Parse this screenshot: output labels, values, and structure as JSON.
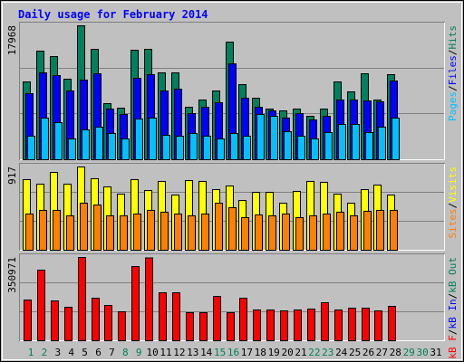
{
  "chart_data": {
    "type": "bar",
    "title": "Daily usage for February 2014",
    "categories": [
      "1",
      "2",
      "3",
      "4",
      "5",
      "6",
      "7",
      "8",
      "9",
      "10",
      "11",
      "12",
      "13",
      "14",
      "15",
      "16",
      "17",
      "18",
      "19",
      "20",
      "21",
      "22",
      "23",
      "24",
      "25",
      "26",
      "27",
      "28",
      "29",
      "30",
      "31"
    ],
    "category_colors": [
      "#00805c",
      "#00805c",
      "#000000",
      "#000000",
      "#000000",
      "#000000",
      "#000000",
      "#00805c",
      "#00805c",
      "#000000",
      "#000000",
      "#000000",
      "#000000",
      "#000000",
      "#00805c",
      "#00805c",
      "#000000",
      "#000000",
      "#000000",
      "#000000",
      "#000000",
      "#00805c",
      "#00805c",
      "#000000",
      "#000000",
      "#000000",
      "#000000",
      "#000000",
      "#00805c",
      "#00805c",
      "#000000"
    ],
    "legend_separator": "/",
    "panels": [
      {
        "ylim": [
          0,
          17968
        ],
        "yticks": [
          17968
        ],
        "series": [
          {
            "name": "Hits",
            "color": "#00805c",
            "values": [
              10440,
              14568,
              13840,
              10805,
              17968,
              14811,
              7527,
              6920,
              14689,
              14811,
              11654,
              11654,
              7041,
              8012,
              9226,
              15782,
              10076,
              8255,
              6798,
              6556,
              6798,
              5827,
              6798,
              10440,
              9105,
              11533,
              8012,
              11412,
              null,
              null,
              null
            ]
          },
          {
            "name": "Files",
            "color": "#0000ff",
            "values": [
              8862,
              11654,
              11290,
              9226,
              10683,
              11533,
              6798,
              6070,
              10926,
              11412,
              9226,
              9469,
              6191,
              7041,
              7648,
              12868,
              8255,
              7041,
              6556,
              5584,
              6191,
              5342,
              5827,
              8012,
              8012,
              7891,
              7770,
              10562,
              null,
              null,
              null
            ]
          },
          {
            "name": "Pages",
            "color": "#00c0ff",
            "values": [
              3156,
              5584,
              4977,
              2792,
              4006,
              4370,
              3521,
              2792,
              5463,
              5584,
              3278,
              3156,
              3521,
              3156,
              2792,
              3521,
              3156,
              6070,
              5827,
              3763,
              3156,
              2792,
              3642,
              4735,
              4735,
              3642,
              4370,
              5584,
              null,
              null,
              null
            ]
          }
        ]
      },
      {
        "ylim": [
          0,
          917
        ],
        "yticks": [
          917
        ],
        "series": [
          {
            "name": "Visits",
            "color": "#ffff00",
            "values": [
              778,
              728,
              857,
              728,
              917,
              788,
              698,
              618,
              778,
              658,
              758,
              608,
              768,
              758,
              668,
              708,
              548,
              638,
              638,
              518,
              648,
              758,
              748,
              618,
              518,
              668,
              718,
              608,
              null,
              null,
              null
            ]
          },
          {
            "name": "Sites",
            "color": "#ff8000",
            "values": [
              399,
              439,
              439,
              379,
              518,
              498,
              379,
              379,
              399,
              439,
              419,
              399,
              379,
              399,
              518,
              469,
              359,
              389,
              379,
              399,
              359,
              379,
              399,
              419,
              379,
              429,
              439,
              439,
              null,
              null,
              null
            ]
          }
        ]
      },
      {
        "ylim": [
          0,
          350971
        ],
        "yticks": [
          350971
        ],
        "series": [
          {
            "name": "kB Out",
            "color": "#00805c"
          },
          {
            "name": "kB In",
            "color": "#0000ff"
          },
          {
            "name": "kB F",
            "color": "#ff0000",
            "values": [
              171675,
              297570,
              167860,
              141155,
              350971,
              179305,
              148785,
              122080,
              312830,
              349000,
              202195,
              202195,
              118265,
              118265,
              186935,
              118265,
              179305,
              129710,
              129710,
              125895,
              129710,
              133525,
              160230,
              129710,
              137340,
              137340,
              125895,
              144970,
              null,
              null,
              null
            ]
          }
        ]
      }
    ]
  }
}
